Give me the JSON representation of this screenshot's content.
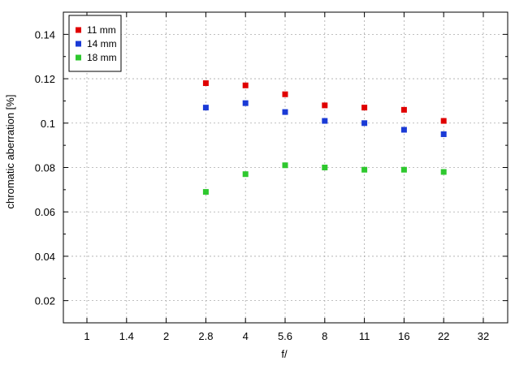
{
  "chart_data": {
    "type": "scatter",
    "xlabel": "f/",
    "ylabel": "chromatic  aberration [%]",
    "x_categories": [
      "1",
      "1.4",
      "2",
      "2.8",
      "4",
      "5.6",
      "8",
      "11",
      "16",
      "22",
      "32"
    ],
    "y_ticks": [
      0.02,
      0.04,
      0.06,
      0.08,
      0.1,
      0.12,
      0.14
    ],
    "y_tick_labels": [
      "0.02",
      "0.04",
      "0.06",
      "0.08",
      "0.1",
      "0.12",
      "0.14"
    ],
    "ylim": [
      0.01,
      0.15
    ],
    "grid": true,
    "legend_position": "top-left",
    "series": [
      {
        "name": "11 mm",
        "color": "#e00000",
        "points": [
          {
            "x": "2.8",
            "y": 0.118
          },
          {
            "x": "4",
            "y": 0.117
          },
          {
            "x": "5.6",
            "y": 0.113
          },
          {
            "x": "8",
            "y": 0.108
          },
          {
            "x": "11",
            "y": 0.107
          },
          {
            "x": "16",
            "y": 0.106
          },
          {
            "x": "22",
            "y": 0.101
          }
        ]
      },
      {
        "name": "14 mm",
        "color": "#1a3ad6",
        "points": [
          {
            "x": "2.8",
            "y": 0.107
          },
          {
            "x": "4",
            "y": 0.109
          },
          {
            "x": "5.6",
            "y": 0.105
          },
          {
            "x": "8",
            "y": 0.101
          },
          {
            "x": "11",
            "y": 0.1
          },
          {
            "x": "16",
            "y": 0.097
          },
          {
            "x": "22",
            "y": 0.095
          }
        ]
      },
      {
        "name": "18 mm",
        "color": "#2ec82e",
        "points": [
          {
            "x": "2.8",
            "y": 0.069
          },
          {
            "x": "4",
            "y": 0.077
          },
          {
            "x": "5.6",
            "y": 0.081
          },
          {
            "x": "8",
            "y": 0.08
          },
          {
            "x": "11",
            "y": 0.079
          },
          {
            "x": "16",
            "y": 0.079
          },
          {
            "x": "22",
            "y": 0.078
          }
        ]
      }
    ]
  }
}
